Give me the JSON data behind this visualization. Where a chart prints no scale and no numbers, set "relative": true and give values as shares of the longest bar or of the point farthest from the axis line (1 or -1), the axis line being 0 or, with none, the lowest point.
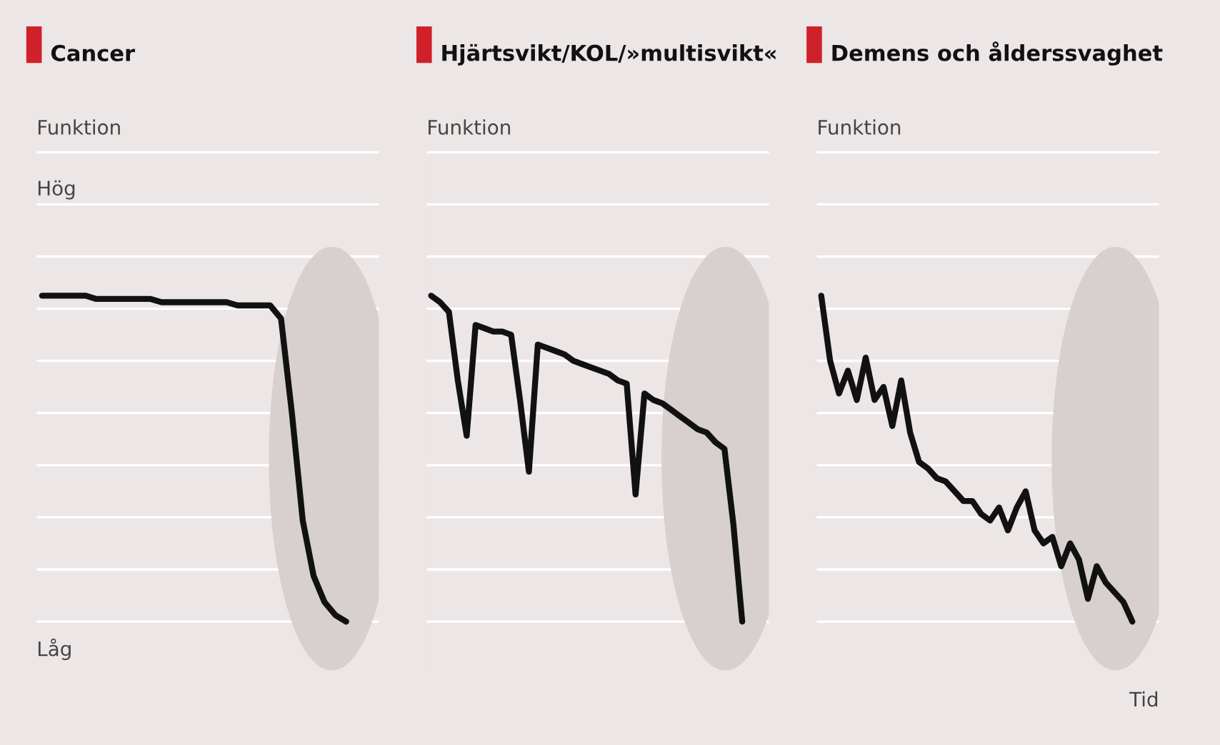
{
  "chart_data": [
    {
      "type": "line",
      "relative": true,
      "title": "Cancer",
      "ylabel": "Funktion",
      "annotations": [
        "Hög",
        "Låg"
      ],
      "grid": "y",
      "legend": false,
      "categories": [
        null,
        null,
        null,
        null,
        null,
        null,
        null,
        null,
        null,
        null,
        null,
        null,
        null,
        null,
        null,
        null,
        null,
        null,
        null,
        null,
        null,
        null,
        null,
        null,
        null,
        null,
        null,
        null,
        null
      ],
      "series": [
        {
          "color": "#111111",
          "values": [
            1.0,
            1.0,
            1.0,
            1.0,
            1.0,
            0.99,
            0.99,
            0.99,
            0.99,
            0.99,
            0.99,
            0.98,
            0.98,
            0.98,
            0.98,
            0.98,
            0.98,
            0.98,
            0.97,
            0.97,
            0.97,
            0.97,
            0.93,
            0.64,
            0.31,
            0.14,
            0.06,
            0.02,
            0.0
          ]
        }
      ]
    },
    {
      "type": "line",
      "relative": true,
      "title": "Hjärtsvikt/KOL/»multisvikt«",
      "ylabel": "Funktion",
      "grid": "y",
      "legend": false,
      "categories": [
        null,
        null,
        null,
        null,
        null,
        null,
        null,
        null,
        null,
        null,
        null,
        null,
        null,
        null,
        null,
        null,
        null,
        null,
        null,
        null,
        null,
        null,
        null,
        null,
        null,
        null,
        null,
        null,
        null,
        null,
        null,
        null,
        null,
        null,
        null,
        null
      ],
      "series": [
        {
          "color": "#111111",
          "values": [
            1.0,
            0.98,
            0.95,
            0.74,
            0.57,
            0.91,
            0.9,
            0.89,
            0.89,
            0.88,
            0.68,
            0.46,
            0.85,
            0.84,
            0.83,
            0.82,
            0.8,
            0.79,
            0.78,
            0.77,
            0.76,
            0.74,
            0.73,
            0.39,
            0.7,
            0.68,
            0.67,
            0.65,
            0.63,
            0.61,
            0.59,
            0.58,
            0.55,
            0.53,
            0.3,
            0.0
          ]
        }
      ]
    },
    {
      "type": "line",
      "relative": true,
      "title": "Demens och ålderssvaghet",
      "ylabel": "Funktion",
      "xlabel": "Tid",
      "grid": "y",
      "legend": false,
      "categories": [
        null,
        null,
        null,
        null,
        null,
        null,
        null,
        null,
        null,
        null,
        null,
        null,
        null,
        null,
        null,
        null,
        null,
        null,
        null,
        null,
        null,
        null,
        null,
        null,
        null,
        null,
        null,
        null,
        null,
        null,
        null,
        null,
        null,
        null,
        null,
        null
      ],
      "series": [
        {
          "color": "#111111",
          "values": [
            1.0,
            0.8,
            0.7,
            0.77,
            0.68,
            0.81,
            0.68,
            0.72,
            0.6,
            0.74,
            0.58,
            0.49,
            0.47,
            0.44,
            0.43,
            0.4,
            0.37,
            0.37,
            0.33,
            0.31,
            0.35,
            0.28,
            0.35,
            0.4,
            0.28,
            0.24,
            0.26,
            0.17,
            0.24,
            0.19,
            0.07,
            0.17,
            0.12,
            0.09,
            0.06,
            0.0
          ]
        }
      ]
    }
  ]
}
